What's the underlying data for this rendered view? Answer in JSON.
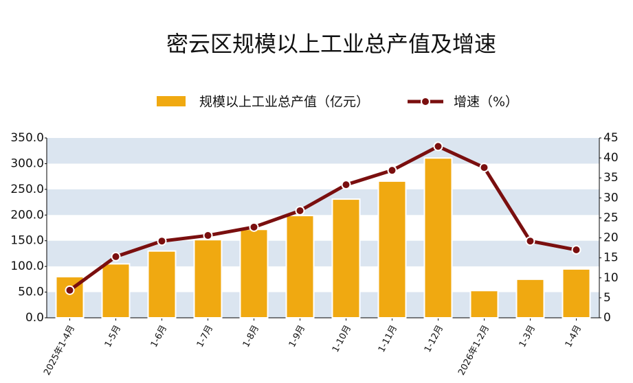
{
  "chart_data": {
    "type": "bar-line",
    "title": "密云区规模以上工业总产值及增速",
    "categories": [
      "2025年1-4月",
      "1-5月",
      "1-6月",
      "1-7月",
      "1-8月",
      "1-9月",
      "1-10月",
      "1-11月",
      "1-12月",
      "2026年1-2月",
      "1-3月",
      "1-4月"
    ],
    "series": [
      {
        "name": "规模以上工业总产值（亿元）",
        "type": "bar",
        "color": "#f0a911",
        "values": [
          80,
          105,
          130,
          152,
          172,
          199,
          231,
          266,
          311,
          53,
          75,
          95
        ]
      },
      {
        "name": "增速（%）",
        "type": "line",
        "axis": "y2",
        "color": "#7a0f0f",
        "values": [
          6.9,
          15.3,
          19.2,
          20.6,
          22.7,
          26.8,
          33.3,
          36.9,
          42.9,
          37.6,
          19.2,
          17.0
        ]
      }
    ],
    "ylim": [
      0,
      350
    ],
    "yticks": [
      {
        "value": 0,
        "label": "0.0"
      },
      {
        "value": 50,
        "label": "50.0"
      },
      {
        "value": 100,
        "label": "100.0"
      },
      {
        "value": 150,
        "label": "150.0"
      },
      {
        "value": 200,
        "label": "200.0"
      },
      {
        "value": 250,
        "label": "250.0"
      },
      {
        "value": 300,
        "label": "300.0"
      },
      {
        "value": 350,
        "label": "350.0"
      }
    ],
    "y2lim": [
      0,
      45
    ],
    "y2ticks": [
      0,
      5,
      10,
      15,
      20,
      25,
      30,
      35,
      40,
      45
    ],
    "grid": "bands",
    "band_color": "#dbe5f0"
  }
}
